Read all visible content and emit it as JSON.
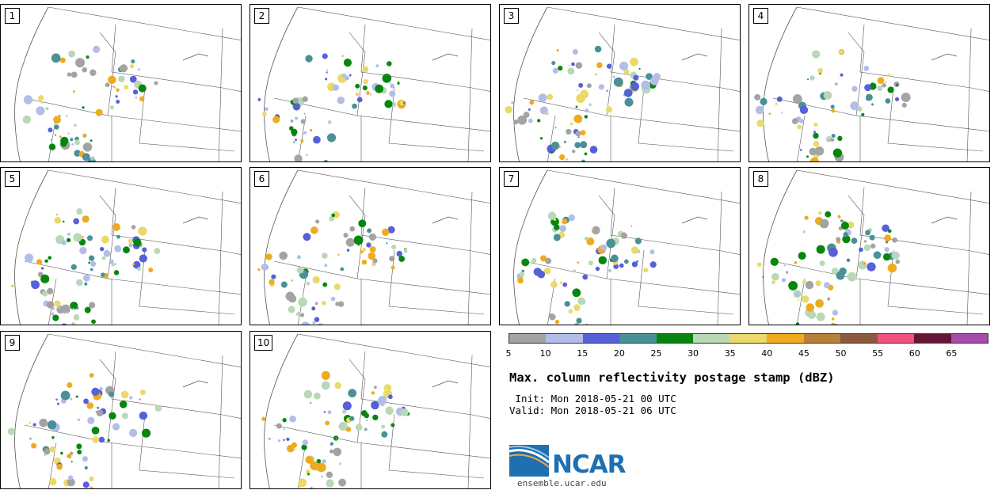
{
  "figure": {
    "title": "Max. column reflectivity postage stamp (dBZ)",
    "init": " Init: Mon 2018-05-21 00 UTC",
    "valid": "Valid: Mon 2018-05-21 06 UTC",
    "logo_text": "NCAR",
    "site": "ensemble.ucar.edu"
  },
  "panels": [
    {
      "label": "1",
      "rows": 0,
      "col": 0
    },
    {
      "label": "2"
    },
    {
      "label": "3"
    },
    {
      "label": "4"
    },
    {
      "label": "5"
    },
    {
      "label": "6"
    },
    {
      "label": "7"
    },
    {
      "label": "8"
    },
    {
      "label": "9"
    },
    {
      "label": "10"
    }
  ],
  "colorbar": {
    "ticks": [
      "5",
      "10",
      "15",
      "20",
      "25",
      "30",
      "35",
      "40",
      "45",
      "50",
      "55",
      "60",
      "65"
    ],
    "colors": [
      "#a3a3a3",
      "#b3bde8",
      "#5560d9",
      "#4a9097",
      "#06860d",
      "#b9d8b6",
      "#ebd96a",
      "#eeab1d",
      "#b8813a",
      "#8b5a3e",
      "#f2527c",
      "#651636",
      "#a64ba8"
    ]
  }
}
